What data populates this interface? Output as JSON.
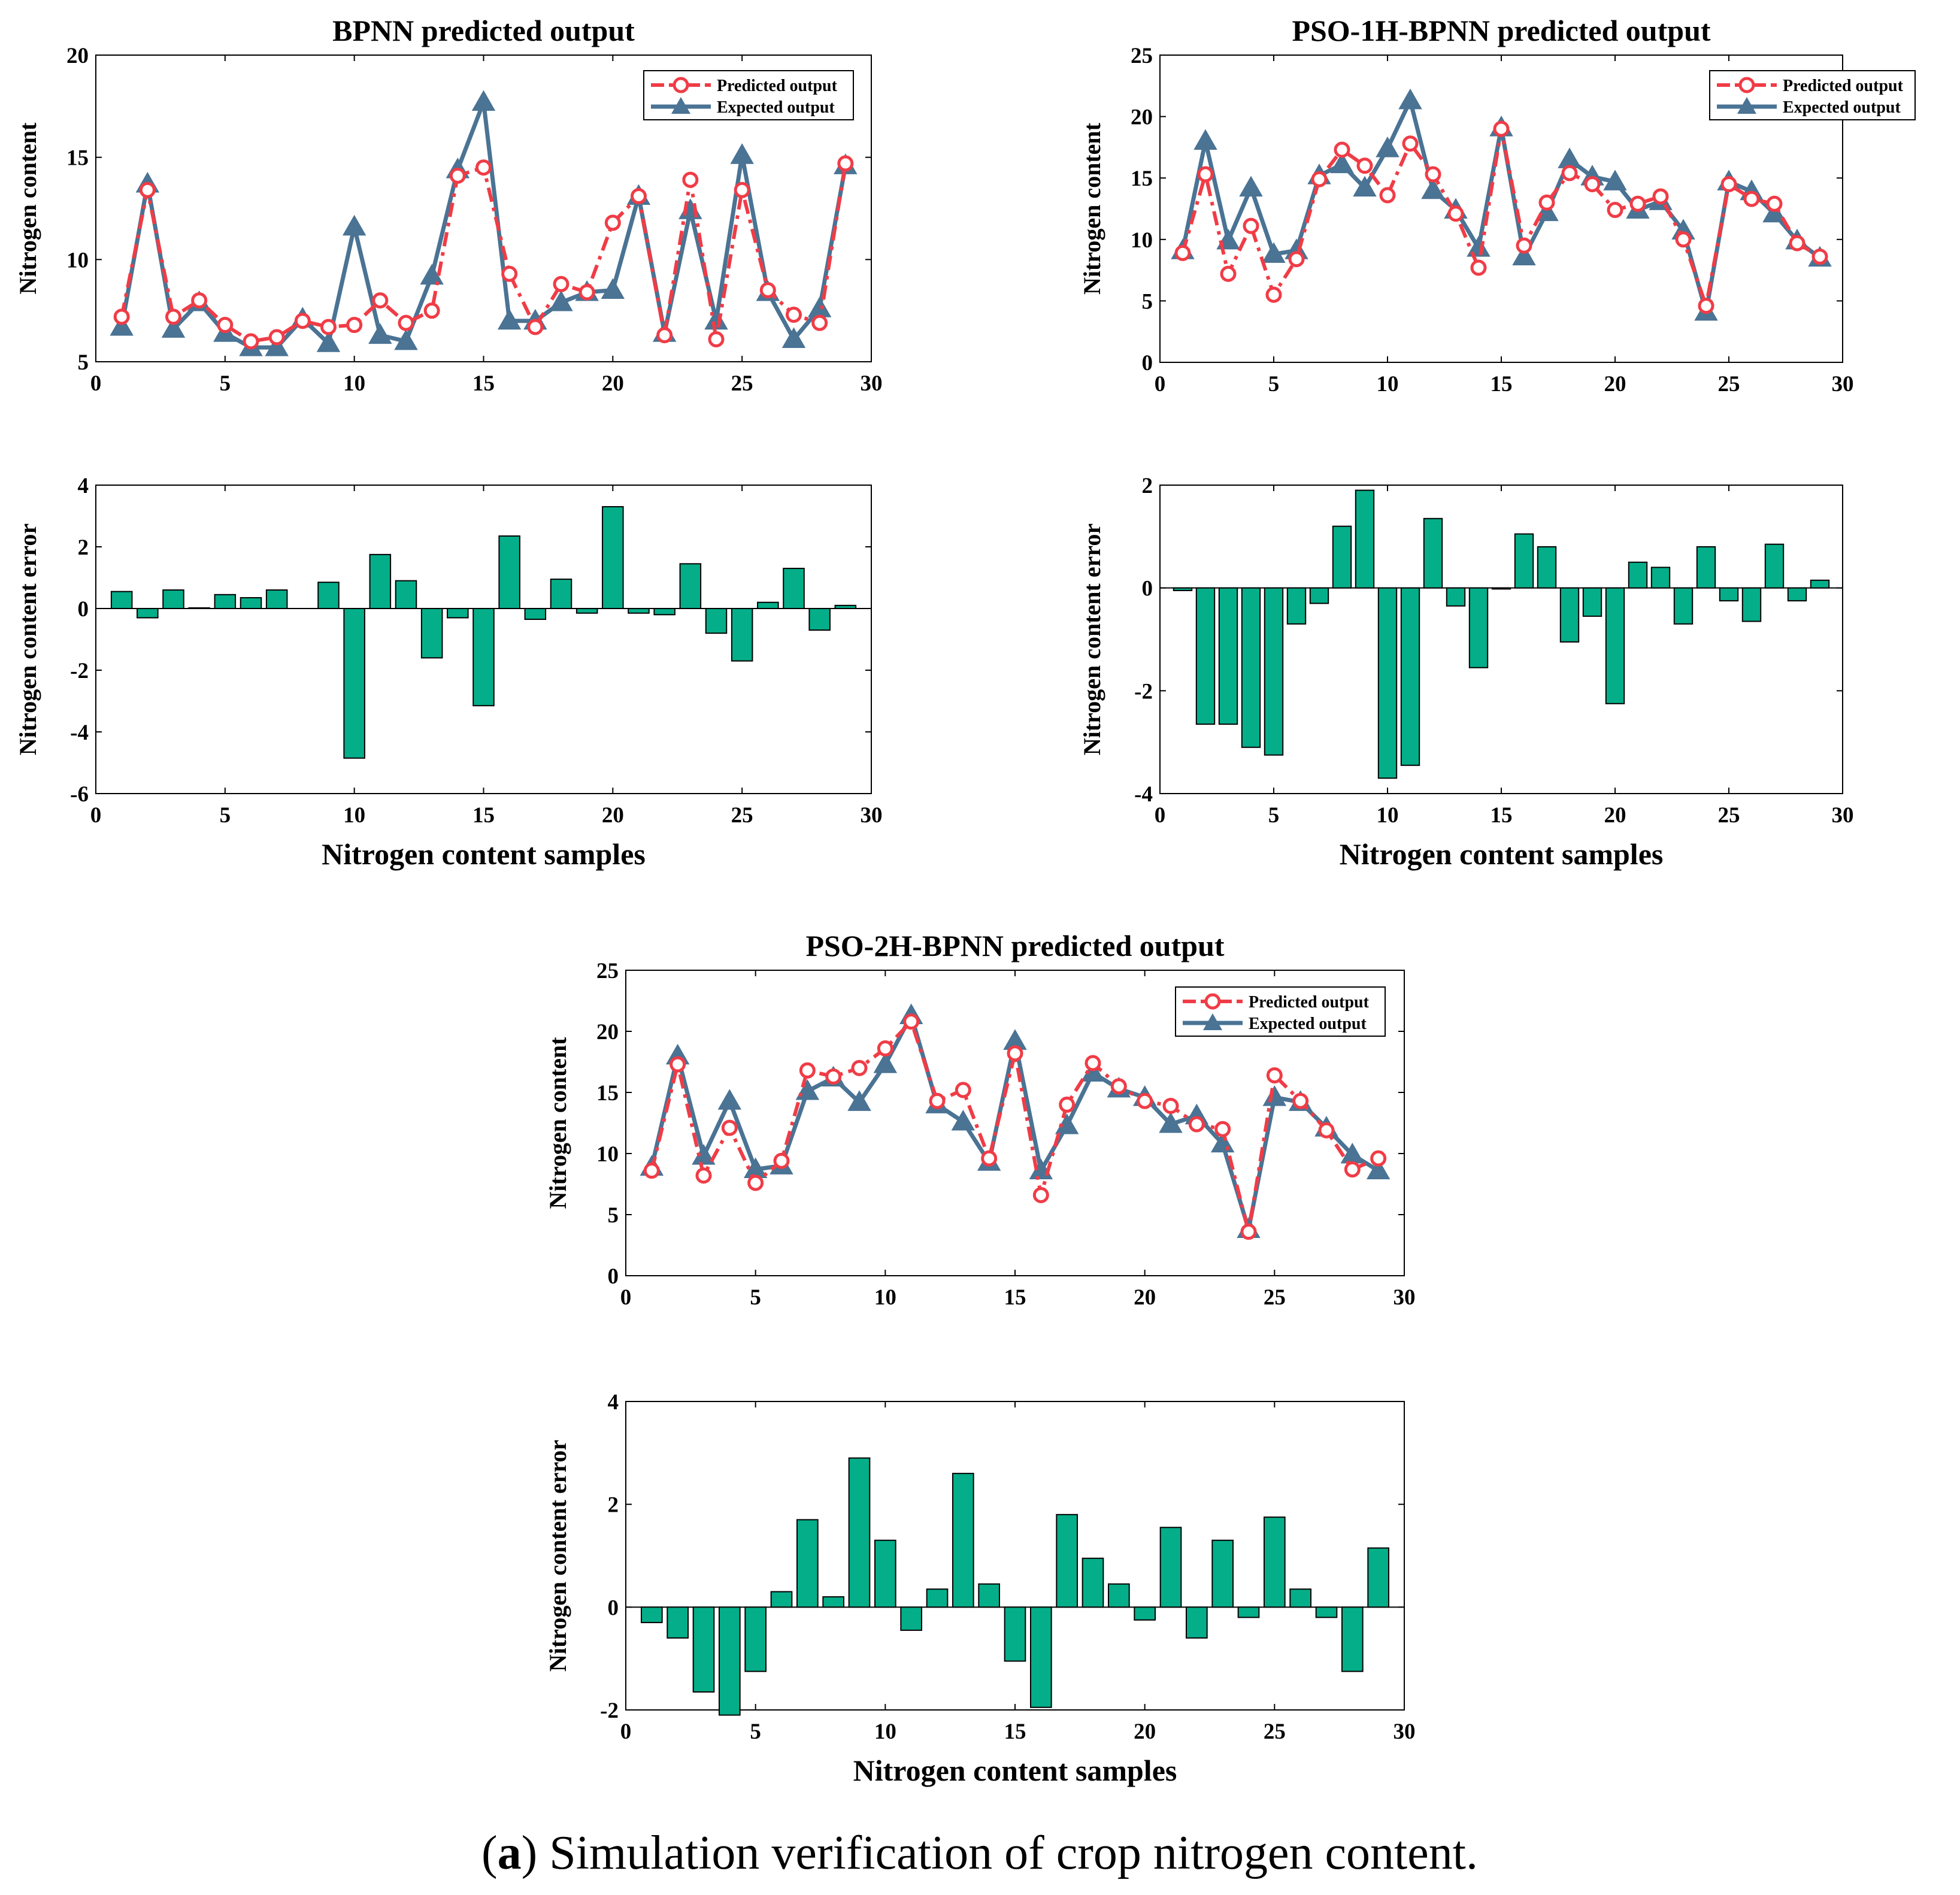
{
  "colors": {
    "predicted": "#f03c46",
    "expected": "#4a7394",
    "bar": "#04ae89",
    "bar_edge": "#000000"
  },
  "legend": {
    "predicted": "Predicted output",
    "expected": "Expected output"
  },
  "caption": {
    "label": "a",
    "text": " Simulation verification of crop nitrogen content."
  },
  "chart_data": [
    {
      "id": "bpnn-output",
      "type": "line",
      "title": "BPNN predicted output",
      "xlabel": "",
      "ylabel": "Nitrogen content",
      "xlim": [
        0,
        30
      ],
      "ylim": [
        5,
        20
      ],
      "xticks": [
        "0",
        "5",
        "10",
        "15",
        "20",
        "25",
        "30"
      ],
      "yticks": [
        "5",
        "10",
        "15",
        "20"
      ],
      "legend": "top-right",
      "x": [
        1,
        2,
        3,
        4,
        5,
        6,
        7,
        8,
        9,
        10,
        11,
        12,
        13,
        14,
        15,
        16,
        17,
        18,
        19,
        20,
        21,
        22,
        23,
        24,
        25,
        26,
        27,
        28,
        29
      ],
      "series": [
        {
          "name": "Predicted output",
          "values": [
            7.2,
            13.4,
            7.2,
            8.0,
            6.8,
            6.0,
            6.2,
            7.0,
            6.7,
            6.8,
            8.0,
            6.9,
            7.5,
            14.1,
            14.5,
            9.3,
            6.7,
            8.8,
            8.4,
            11.8,
            13.1,
            6.3,
            13.9,
            6.1,
            13.4,
            8.5,
            7.3,
            6.9,
            14.7
          ]
        },
        {
          "name": "Expected output",
          "values": [
            6.7,
            13.7,
            6.6,
            7.9,
            6.4,
            5.7,
            5.7,
            7.1,
            5.9,
            11.6,
            6.3,
            6.0,
            9.2,
            14.4,
            17.7,
            7.0,
            7.0,
            7.9,
            8.4,
            8.5,
            13.1,
            6.4,
            12.4,
            7.0,
            15.1,
            8.4,
            6.1,
            7.6,
            14.6
          ]
        }
      ]
    },
    {
      "id": "bpnn-error",
      "type": "bar",
      "title": "",
      "xlabel": "Nitrogen content samples",
      "ylabel": "Nitrogen content error",
      "xlim": [
        0,
        30
      ],
      "ylim": [
        -6,
        4
      ],
      "xticks": [
        "0",
        "5",
        "10",
        "15",
        "20",
        "25",
        "30"
      ],
      "yticks": [
        "-6",
        "-4",
        "-2",
        "0",
        "2",
        "4"
      ],
      "x": [
        1,
        2,
        3,
        4,
        5,
        6,
        7,
        8,
        9,
        10,
        11,
        12,
        13,
        14,
        15,
        16,
        17,
        18,
        19,
        20,
        21,
        22,
        23,
        24,
        25,
        26,
        27,
        28,
        29
      ],
      "values": [
        0.55,
        -0.3,
        0.6,
        0.02,
        0.45,
        0.35,
        0.6,
        0,
        0.85,
        -4.85,
        1.75,
        0.9,
        -1.6,
        -0.3,
        -3.15,
        2.35,
        -0.35,
        0.95,
        -0.15,
        3.3,
        -0.15,
        -0.2,
        1.45,
        -0.8,
        -1.7,
        0.2,
        1.3,
        -0.7,
        0.1
      ]
    },
    {
      "id": "pso1h-output",
      "type": "line",
      "title": "PSO-1H-BPNN predicted output",
      "xlabel": "",
      "ylabel": "Nitrogen content",
      "xlim": [
        0,
        30
      ],
      "ylim": [
        0,
        25
      ],
      "xticks": [
        "0",
        "5",
        "10",
        "15",
        "20",
        "25",
        "30"
      ],
      "yticks": [
        "0",
        "5",
        "10",
        "15",
        "20",
        "25"
      ],
      "legend": "top-right",
      "x": [
        1,
        2,
        3,
        4,
        5,
        6,
        7,
        8,
        9,
        10,
        11,
        12,
        13,
        14,
        15,
        16,
        17,
        18,
        19,
        20,
        21,
        22,
        23,
        24,
        25,
        26,
        27,
        28,
        29
      ],
      "series": [
        {
          "name": "Predicted output",
          "values": [
            8.9,
            15.3,
            7.2,
            11.1,
            5.5,
            8.4,
            14.9,
            17.3,
            16.0,
            13.6,
            17.8,
            15.3,
            12.1,
            7.7,
            19.0,
            9.5,
            13.0,
            15.4,
            14.5,
            12.4,
            12.9,
            13.5,
            10.0,
            4.6,
            14.5,
            13.3,
            12.9,
            9.7,
            8.6
          ]
        },
        {
          "name": "Expected output",
          "values": [
            9.1,
            18.0,
            9.9,
            14.2,
            8.8,
            9.1,
            15.2,
            16.1,
            14.2,
            17.4,
            21.3,
            14.0,
            12.4,
            9.3,
            19.1,
            8.6,
            12.2,
            16.5,
            15.1,
            14.7,
            12.4,
            13.1,
            10.7,
            4.1,
            14.7,
            13.9,
            12.1,
            9.9,
            8.5
          ]
        }
      ]
    },
    {
      "id": "pso1h-error",
      "type": "bar",
      "title": "",
      "xlabel": "Nitrogen content samples",
      "ylabel": "Nitrogen content error",
      "xlim": [
        0,
        30
      ],
      "ylim": [
        -4,
        2
      ],
      "xticks": [
        "0",
        "5",
        "10",
        "15",
        "20",
        "25",
        "30"
      ],
      "yticks": [
        "-4",
        "-2",
        "0",
        "2"
      ],
      "x": [
        1,
        2,
        3,
        4,
        5,
        6,
        7,
        8,
        9,
        10,
        11,
        12,
        13,
        14,
        15,
        16,
        17,
        18,
        19,
        20,
        21,
        22,
        23,
        24,
        25,
        26,
        27,
        28,
        29
      ],
      "values": [
        -0.05,
        -2.65,
        -2.65,
        -3.1,
        -3.25,
        -0.7,
        -0.3,
        1.2,
        1.9,
        -3.7,
        -3.45,
        1.35,
        -0.35,
        -1.55,
        -0.02,
        1.05,
        0.8,
        -1.05,
        -0.55,
        -2.25,
        0.5,
        0.4,
        -0.7,
        0.8,
        -0.25,
        -0.65,
        0.85,
        -0.25,
        0.15
      ]
    },
    {
      "id": "pso2h-output",
      "type": "line",
      "title": "PSO-2H-BPNN predicted output",
      "xlabel": "",
      "ylabel": "Nitrogen content",
      "xlim": [
        0,
        30
      ],
      "ylim": [
        0,
        25
      ],
      "xticks": [
        "0",
        "5",
        "10",
        "15",
        "20",
        "25",
        "30"
      ],
      "yticks": [
        "0",
        "5",
        "10",
        "15",
        "20",
        "25"
      ],
      "legend": "top-right",
      "x": [
        1,
        2,
        3,
        4,
        5,
        6,
        7,
        8,
        9,
        10,
        11,
        12,
        13,
        14,
        15,
        16,
        17,
        18,
        19,
        20,
        21,
        22,
        23,
        24,
        25,
        26,
        27,
        28,
        29
      ],
      "series": [
        {
          "name": "Predicted output",
          "values": [
            8.6,
            17.3,
            8.2,
            12.1,
            7.6,
            9.4,
            16.8,
            16.3,
            17.0,
            18.6,
            20.8,
            14.3,
            15.2,
            9.6,
            18.2,
            6.6,
            14.0,
            17.4,
            15.5,
            14.3,
            13.9,
            12.4,
            12.0,
            3.6,
            16.4,
            14.3,
            11.9,
            8.7,
            9.6
          ]
        },
        {
          "name": "Expected output",
          "values": [
            8.9,
            18.0,
            9.8,
            14.3,
            8.7,
            9.0,
            15.1,
            16.2,
            14.2,
            17.3,
            21.3,
            14.0,
            12.6,
            9.3,
            19.2,
            8.6,
            12.3,
            16.6,
            15.3,
            14.6,
            12.4,
            13.1,
            10.8,
            3.8,
            14.6,
            14.2,
            12.1,
            9.9,
            8.6
          ]
        }
      ]
    },
    {
      "id": "pso2h-error",
      "type": "bar",
      "title": "",
      "xlabel": "Nitrogen content samples",
      "ylabel": "Nitrogen content error",
      "xlim": [
        0,
        30
      ],
      "ylim": [
        -2,
        4
      ],
      "xticks": [
        "0",
        "5",
        "10",
        "15",
        "20",
        "25",
        "30"
      ],
      "yticks": [
        "-2",
        "0",
        "2",
        "4"
      ],
      "x": [
        1,
        2,
        3,
        4,
        5,
        6,
        7,
        8,
        9,
        10,
        11,
        12,
        13,
        14,
        15,
        16,
        17,
        18,
        19,
        20,
        21,
        22,
        23,
        24,
        25,
        26,
        27,
        28,
        29
      ],
      "values": [
        -0.3,
        -0.6,
        -1.65,
        -2.1,
        -1.25,
        0.3,
        1.7,
        0.2,
        2.9,
        1.3,
        -0.45,
        0.35,
        2.6,
        0.45,
        -1.05,
        -1.95,
        1.8,
        0.95,
        0.45,
        -0.25,
        1.55,
        -0.6,
        1.3,
        -0.2,
        1.75,
        0.35,
        -0.2,
        -1.25,
        1.15
      ]
    }
  ]
}
